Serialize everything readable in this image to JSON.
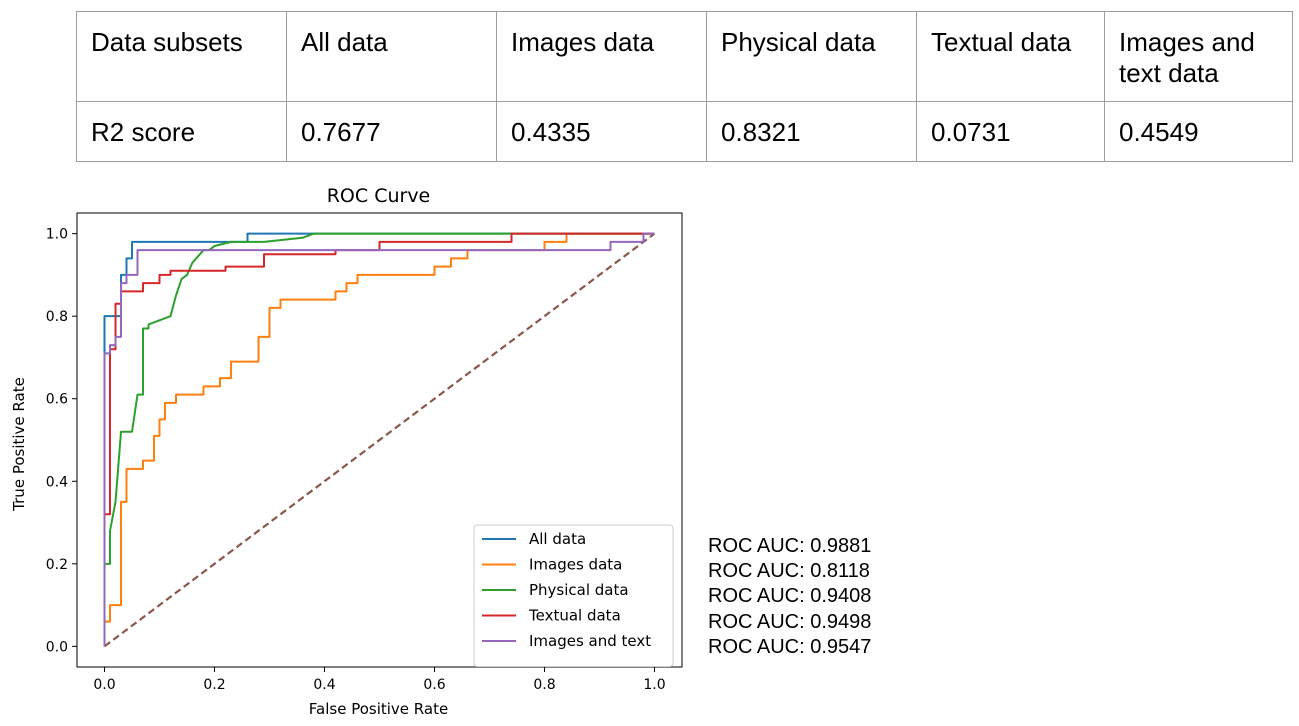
{
  "table": {
    "headers": [
      "Data subsets",
      "All data",
      "Images data",
      "Physical data",
      "Textual data",
      "Images and text data"
    ],
    "row": [
      "R2 score",
      "0.7677",
      "0.4335",
      "0.8321",
      "0.0731",
      "0.4549"
    ]
  },
  "chart_data": {
    "type": "line",
    "title": "ROC Curve",
    "xlabel": "False Positive Rate",
    "ylabel": "True Positive Rate",
    "xlim": [
      -0.05,
      1.05
    ],
    "ylim": [
      -0.05,
      1.05
    ],
    "xticks": [
      "0.0",
      "0.2",
      "0.4",
      "0.6",
      "0.8",
      "1.0"
    ],
    "yticks": [
      "0.0",
      "0.2",
      "0.4",
      "0.6",
      "0.8",
      "1.0"
    ],
    "grid": false,
    "legend_position": "lower right",
    "series": [
      {
        "name": "All data",
        "color": "#1f77b4",
        "points": [
          [
            0,
            0
          ],
          [
            0,
            0.8
          ],
          [
            0.03,
            0.8
          ],
          [
            0.03,
            0.9
          ],
          [
            0.04,
            0.9
          ],
          [
            0.04,
            0.94
          ],
          [
            0.05,
            0.94
          ],
          [
            0.05,
            0.98
          ],
          [
            0.26,
            0.98
          ],
          [
            0.26,
            1.0
          ],
          [
            1.0,
            1.0
          ]
        ]
      },
      {
        "name": "Images data",
        "color": "#ff7f0e",
        "points": [
          [
            0,
            0
          ],
          [
            0,
            0.06
          ],
          [
            0.01,
            0.06
          ],
          [
            0.01,
            0.1
          ],
          [
            0.03,
            0.1
          ],
          [
            0.03,
            0.35
          ],
          [
            0.04,
            0.35
          ],
          [
            0.04,
            0.43
          ],
          [
            0.07,
            0.43
          ],
          [
            0.07,
            0.45
          ],
          [
            0.09,
            0.45
          ],
          [
            0.09,
            0.51
          ],
          [
            0.1,
            0.51
          ],
          [
            0.1,
            0.55
          ],
          [
            0.11,
            0.55
          ],
          [
            0.11,
            0.59
          ],
          [
            0.13,
            0.59
          ],
          [
            0.13,
            0.61
          ],
          [
            0.18,
            0.61
          ],
          [
            0.18,
            0.63
          ],
          [
            0.21,
            0.63
          ],
          [
            0.21,
            0.65
          ],
          [
            0.23,
            0.65
          ],
          [
            0.23,
            0.69
          ],
          [
            0.28,
            0.69
          ],
          [
            0.28,
            0.75
          ],
          [
            0.3,
            0.75
          ],
          [
            0.3,
            0.82
          ],
          [
            0.32,
            0.82
          ],
          [
            0.32,
            0.84
          ],
          [
            0.42,
            0.84
          ],
          [
            0.42,
            0.86
          ],
          [
            0.44,
            0.86
          ],
          [
            0.44,
            0.88
          ],
          [
            0.46,
            0.88
          ],
          [
            0.46,
            0.9
          ],
          [
            0.6,
            0.9
          ],
          [
            0.6,
            0.92
          ],
          [
            0.63,
            0.92
          ],
          [
            0.63,
            0.94
          ],
          [
            0.66,
            0.94
          ],
          [
            0.66,
            0.96
          ],
          [
            0.8,
            0.96
          ],
          [
            0.8,
            0.98
          ],
          [
            0.84,
            0.98
          ],
          [
            0.84,
            1.0
          ],
          [
            1.0,
            1.0
          ]
        ]
      },
      {
        "name": "Physical data",
        "color": "#2ca02c",
        "points": [
          [
            0,
            0
          ],
          [
            0,
            0.2
          ],
          [
            0.01,
            0.2
          ],
          [
            0.01,
            0.28
          ],
          [
            0.02,
            0.35
          ],
          [
            0.03,
            0.52
          ],
          [
            0.05,
            0.52
          ],
          [
            0.06,
            0.61
          ],
          [
            0.07,
            0.61
          ],
          [
            0.07,
            0.77
          ],
          [
            0.08,
            0.77
          ],
          [
            0.08,
            0.78
          ],
          [
            0.12,
            0.8
          ],
          [
            0.13,
            0.85
          ],
          [
            0.14,
            0.89
          ],
          [
            0.15,
            0.9
          ],
          [
            0.16,
            0.93
          ],
          [
            0.18,
            0.96
          ],
          [
            0.19,
            0.96
          ],
          [
            0.2,
            0.97
          ],
          [
            0.23,
            0.98
          ],
          [
            0.29,
            0.98
          ],
          [
            0.36,
            0.99
          ],
          [
            0.38,
            1.0
          ],
          [
            1.0,
            1.0
          ]
        ]
      },
      {
        "name": "Textual data",
        "color": "#d62728",
        "points": [
          [
            0,
            0
          ],
          [
            0,
            0.32
          ],
          [
            0.01,
            0.32
          ],
          [
            0.01,
            0.72
          ],
          [
            0.02,
            0.72
          ],
          [
            0.02,
            0.83
          ],
          [
            0.03,
            0.83
          ],
          [
            0.03,
            0.86
          ],
          [
            0.07,
            0.86
          ],
          [
            0.07,
            0.88
          ],
          [
            0.1,
            0.88
          ],
          [
            0.1,
            0.9
          ],
          [
            0.12,
            0.9
          ],
          [
            0.12,
            0.91
          ],
          [
            0.22,
            0.91
          ],
          [
            0.22,
            0.92
          ],
          [
            0.29,
            0.92
          ],
          [
            0.29,
            0.95
          ],
          [
            0.42,
            0.95
          ],
          [
            0.42,
            0.96
          ],
          [
            0.5,
            0.96
          ],
          [
            0.5,
            0.98
          ],
          [
            0.74,
            0.98
          ],
          [
            0.74,
            1.0
          ],
          [
            1.0,
            1.0
          ]
        ]
      },
      {
        "name": "Images and text",
        "color": "#9467bd",
        "points": [
          [
            0,
            0
          ],
          [
            0,
            0.71
          ],
          [
            0.01,
            0.71
          ],
          [
            0.01,
            0.73
          ],
          [
            0.02,
            0.73
          ],
          [
            0.02,
            0.75
          ],
          [
            0.03,
            0.75
          ],
          [
            0.03,
            0.88
          ],
          [
            0.04,
            0.88
          ],
          [
            0.04,
            0.9
          ],
          [
            0.06,
            0.9
          ],
          [
            0.06,
            0.96
          ],
          [
            0.92,
            0.96
          ],
          [
            0.92,
            0.98
          ],
          [
            0.98,
            0.98
          ],
          [
            0.98,
            1.0
          ],
          [
            1.0,
            1.0
          ]
        ]
      }
    ],
    "reference_line": {
      "color": "#8c564b",
      "points": [
        [
          0,
          0
        ],
        [
          1,
          1
        ]
      ]
    }
  },
  "auc_notes": [
    "ROC AUC: 0.9881",
    "ROC AUC: 0.8118",
    "ROC AUC: 0.9408",
    "ROC AUC: 0.9498",
    "ROC AUC: 0.9547"
  ]
}
